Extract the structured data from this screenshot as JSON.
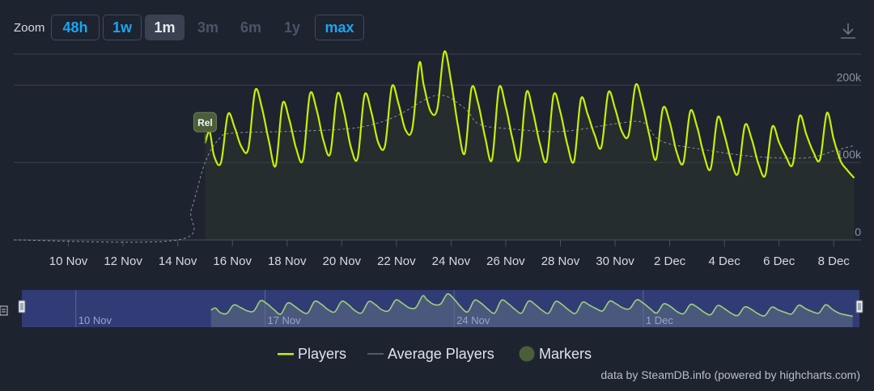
{
  "zoom": {
    "label": "Zoom",
    "buttons": [
      {
        "label": "48h",
        "state": "on"
      },
      {
        "label": "1w",
        "state": "on"
      },
      {
        "label": "1m",
        "state": "selected"
      },
      {
        "label": "3m",
        "state": "disabled"
      },
      {
        "label": "6m",
        "state": "disabled"
      },
      {
        "label": "1y",
        "state": "disabled"
      },
      {
        "label": "max",
        "state": "on"
      }
    ]
  },
  "colors": {
    "background": "#1e2330",
    "players": "#c6f000",
    "average": "#8b93a0",
    "marker": "#4b5e3a",
    "grid": "#394050",
    "navigator_bg": "#333e7a",
    "navigator_series": "#9bd27a"
  },
  "chart_data": {
    "type": "line",
    "title": "",
    "xlabel": "",
    "ylabel": "",
    "x_tick_labels": [
      "10 Nov",
      "12 Nov",
      "14 Nov",
      "16 Nov",
      "18 Nov",
      "20 Nov",
      "22 Nov",
      "24 Nov",
      "26 Nov",
      "28 Nov",
      "30 Nov",
      "2 Dec",
      "4 Dec",
      "6 Dec",
      "8 Dec"
    ],
    "y_tick_labels": [
      "0",
      "100k",
      "200k"
    ],
    "xlim": [
      "2023-11-08",
      "2023-12-09"
    ],
    "ylim": [
      0,
      240000
    ],
    "grid": true,
    "legend_placement": "bottom",
    "series": [
      {
        "name": "Players",
        "points": [
          [
            "2023-11-15T00:00",
            125000
          ],
          [
            "2023-11-15T04:00",
            140000
          ],
          [
            "2023-11-15T08:00",
            108000
          ],
          [
            "2023-11-15T14:00",
            100000
          ],
          [
            "2023-11-15T20:00",
            162000
          ],
          [
            "2023-11-16T02:00",
            145000
          ],
          [
            "2023-11-16T08:00",
            120000
          ],
          [
            "2023-11-16T14:00",
            118000
          ],
          [
            "2023-11-16T20:00",
            193000
          ],
          [
            "2023-11-17T02:00",
            170000
          ],
          [
            "2023-11-17T08:00",
            128000
          ],
          [
            "2023-11-17T14:00",
            96000
          ],
          [
            "2023-11-17T20:00",
            176000
          ],
          [
            "2023-11-18T02:00",
            155000
          ],
          [
            "2023-11-18T08:00",
            118000
          ],
          [
            "2023-11-18T14:00",
            104000
          ],
          [
            "2023-11-18T20:00",
            188000
          ],
          [
            "2023-11-19T02:00",
            168000
          ],
          [
            "2023-11-19T08:00",
            128000
          ],
          [
            "2023-11-19T14:00",
            112000
          ],
          [
            "2023-11-19T20:00",
            188000
          ],
          [
            "2023-11-20T02:00",
            165000
          ],
          [
            "2023-11-20T08:00",
            120000
          ],
          [
            "2023-11-20T14:00",
            106000
          ],
          [
            "2023-11-20T20:00",
            187000
          ],
          [
            "2023-11-21T02:00",
            165000
          ],
          [
            "2023-11-21T08:00",
            126000
          ],
          [
            "2023-11-21T14:00",
            122000
          ],
          [
            "2023-11-21T20:00",
            198000
          ],
          [
            "2023-11-22T02:00",
            175000
          ],
          [
            "2023-11-22T08:00",
            142000
          ],
          [
            "2023-11-22T14:00",
            144000
          ],
          [
            "2023-11-22T20:00",
            228000
          ],
          [
            "2023-11-23T00:00",
            200000
          ],
          [
            "2023-11-23T06:00",
            166000
          ],
          [
            "2023-11-23T12:00",
            170000
          ],
          [
            "2023-11-23T18:00",
            243000
          ],
          [
            "2023-11-24T00:00",
            205000
          ],
          [
            "2023-11-24T06:00",
            148000
          ],
          [
            "2023-11-24T12:00",
            112000
          ],
          [
            "2023-11-24T18:00",
            196000
          ],
          [
            "2023-11-25T00:00",
            175000
          ],
          [
            "2023-11-25T06:00",
            132000
          ],
          [
            "2023-11-25T12:00",
            104000
          ],
          [
            "2023-11-25T18:00",
            196000
          ],
          [
            "2023-11-26T00:00",
            172000
          ],
          [
            "2023-11-26T06:00",
            130000
          ],
          [
            "2023-11-26T12:00",
            104000
          ],
          [
            "2023-11-26T18:00",
            190000
          ],
          [
            "2023-11-27T00:00",
            165000
          ],
          [
            "2023-11-27T06:00",
            124000
          ],
          [
            "2023-11-27T12:00",
            103000
          ],
          [
            "2023-11-27T18:00",
            187000
          ],
          [
            "2023-11-28T00:00",
            165000
          ],
          [
            "2023-11-28T06:00",
            124000
          ],
          [
            "2023-11-28T12:00",
            102000
          ],
          [
            "2023-11-28T18:00",
            182000
          ],
          [
            "2023-11-29T00:00",
            162000
          ],
          [
            "2023-11-29T06:00",
            136000
          ],
          [
            "2023-11-29T12:00",
            120000
          ],
          [
            "2023-11-29T18:00",
            190000
          ],
          [
            "2023-11-30T00:00",
            170000
          ],
          [
            "2023-11-30T06:00",
            140000
          ],
          [
            "2023-11-30T12:00",
            136000
          ],
          [
            "2023-11-30T18:00",
            200000
          ],
          [
            "2023-12-01T00:00",
            176000
          ],
          [
            "2023-12-01T06:00",
            136000
          ],
          [
            "2023-12-01T12:00",
            104000
          ],
          [
            "2023-12-01T18:00",
            170000
          ],
          [
            "2023-12-02T00:00",
            152000
          ],
          [
            "2023-12-02T06:00",
            114000
          ],
          [
            "2023-12-02T12:00",
            100000
          ],
          [
            "2023-12-02T18:00",
            166000
          ],
          [
            "2023-12-03T00:00",
            146000
          ],
          [
            "2023-12-03T06:00",
            110000
          ],
          [
            "2023-12-03T12:00",
            92000
          ],
          [
            "2023-12-03T18:00",
            158000
          ],
          [
            "2023-12-04T00:00",
            136000
          ],
          [
            "2023-12-04T06:00",
            102000
          ],
          [
            "2023-12-04T12:00",
            86000
          ],
          [
            "2023-12-04T18:00",
            148000
          ],
          [
            "2023-12-05T00:00",
            130000
          ],
          [
            "2023-12-05T06:00",
            98000
          ],
          [
            "2023-12-05T12:00",
            84000
          ],
          [
            "2023-12-05T18:00",
            146000
          ],
          [
            "2023-12-06T00:00",
            126000
          ],
          [
            "2023-12-06T06:00",
            108000
          ],
          [
            "2023-12-06T12:00",
            98000
          ],
          [
            "2023-12-06T18:00",
            160000
          ],
          [
            "2023-12-07T00:00",
            136000
          ],
          [
            "2023-12-07T06:00",
            114000
          ],
          [
            "2023-12-07T12:00",
            104000
          ],
          [
            "2023-12-07T18:00",
            164000
          ],
          [
            "2023-12-08T00:00",
            130000
          ],
          [
            "2023-12-08T06:00",
            102000
          ],
          [
            "2023-12-08T12:00",
            90000
          ],
          [
            "2023-12-08T18:00",
            80000
          ]
        ]
      },
      {
        "name": "Average Players",
        "points": [
          [
            "2023-11-08T00:00",
            0
          ],
          [
            "2023-11-14T00:00",
            0
          ],
          [
            "2023-11-14T12:00",
            40000
          ],
          [
            "2023-11-15T00:00",
            100000
          ],
          [
            "2023-11-15T12:00",
            130000
          ],
          [
            "2023-11-16T00:00",
            138000
          ],
          [
            "2023-11-18T00:00",
            140000
          ],
          [
            "2023-11-20T00:00",
            143000
          ],
          [
            "2023-11-21T00:00",
            148000
          ],
          [
            "2023-11-22T00:00",
            160000
          ],
          [
            "2023-11-23T12:00",
            187000
          ],
          [
            "2023-11-24T12:00",
            170000
          ],
          [
            "2023-11-25T00:00",
            150000
          ],
          [
            "2023-11-26T00:00",
            144000
          ],
          [
            "2023-11-28T00:00",
            140000
          ],
          [
            "2023-11-30T00:00",
            150000
          ],
          [
            "2023-12-01T00:00",
            152000
          ],
          [
            "2023-12-01T12:00",
            132000
          ],
          [
            "2023-12-02T00:00",
            124000
          ],
          [
            "2023-12-03T00:00",
            118000
          ],
          [
            "2023-12-05T00:00",
            108000
          ],
          [
            "2023-12-07T00:00",
            106000
          ],
          [
            "2023-12-08T00:00",
            115000
          ],
          [
            "2023-12-08T18:00",
            122000
          ]
        ]
      }
    ],
    "markers": [
      {
        "label": "Rel",
        "x": "2023-11-15T00:00",
        "y": 125000
      }
    ],
    "navigator": {
      "tick_labels": [
        "10 Nov",
        "17 Nov",
        "24 Nov",
        "1 Dec"
      ]
    }
  },
  "legend": {
    "items": [
      {
        "label": "Players"
      },
      {
        "label": "Average Players"
      },
      {
        "label": "Markers"
      }
    ]
  },
  "credit": "data by SteamDB.info (powered by highcharts.com)"
}
